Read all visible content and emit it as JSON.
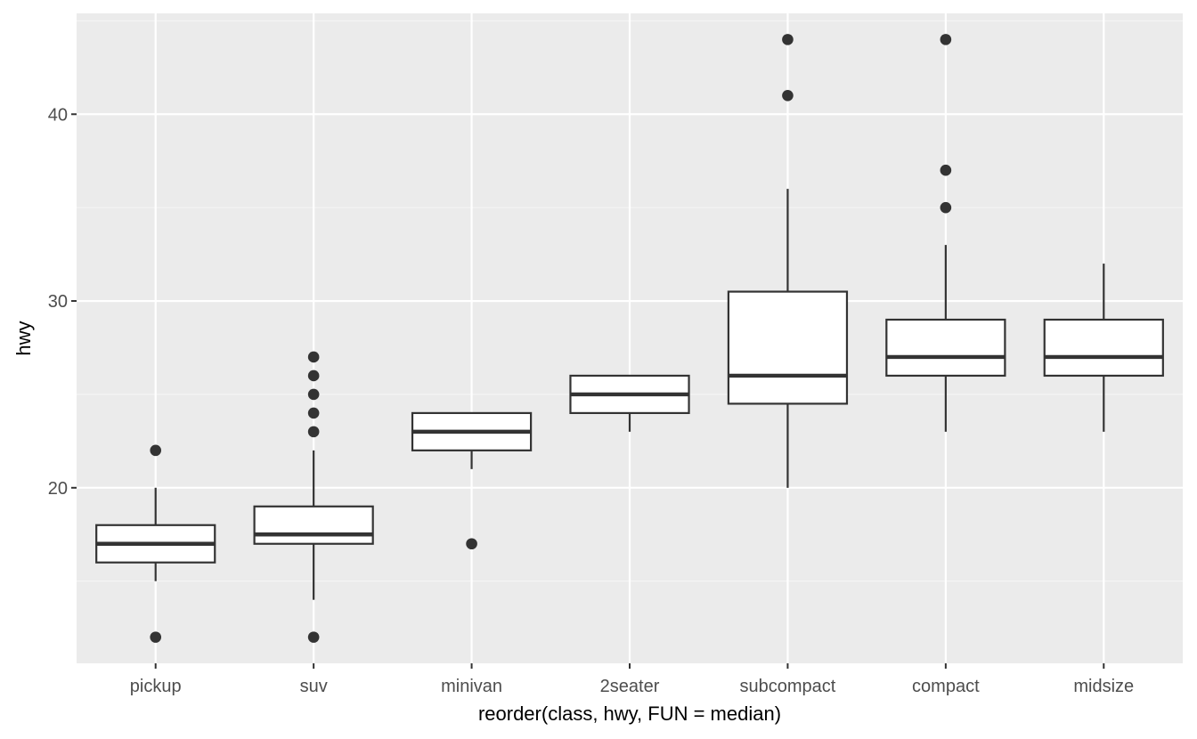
{
  "chart_data": {
    "type": "boxplot",
    "xlabel": "reorder(class, hwy, FUN = median)",
    "ylabel": "hwy",
    "ylim": [
      10.6,
      45.4
    ],
    "yticks": [
      20,
      30,
      40
    ],
    "ytick_labels": [
      "20",
      "30",
      "40"
    ],
    "grid": true,
    "categories": [
      "pickup",
      "suv",
      "minivan",
      "2seater",
      "subcompact",
      "compact",
      "midsize"
    ],
    "boxes": [
      {
        "category": "pickup",
        "whisker_low": 15,
        "q1": 16,
        "median": 17,
        "q3": 18,
        "whisker_high": 20,
        "outliers": [
          12,
          22
        ]
      },
      {
        "category": "suv",
        "whisker_low": 14,
        "q1": 17,
        "median": 17.5,
        "q3": 19,
        "whisker_high": 22,
        "outliers": [
          12,
          23,
          24,
          25,
          26,
          27
        ]
      },
      {
        "category": "minivan",
        "whisker_low": 21,
        "q1": 22,
        "median": 23,
        "q3": 24,
        "whisker_high": 24,
        "outliers": [
          17
        ]
      },
      {
        "category": "2seater",
        "whisker_low": 23,
        "q1": 24,
        "median": 25,
        "q3": 26,
        "whisker_high": 26,
        "outliers": []
      },
      {
        "category": "subcompact",
        "whisker_low": 20,
        "q1": 24.5,
        "median": 26,
        "q3": 30.5,
        "whisker_high": 36,
        "outliers": [
          41,
          44
        ]
      },
      {
        "category": "compact",
        "whisker_low": 23,
        "q1": 26,
        "median": 27,
        "q3": 29,
        "whisker_high": 33,
        "outliers": [
          35,
          37,
          44
        ]
      },
      {
        "category": "midsize",
        "whisker_low": 23,
        "q1": 26,
        "median": 27,
        "q3": 29,
        "whisker_high": 32,
        "outliers": []
      }
    ],
    "colors": {
      "panel_background": "#ebebeb",
      "grid_major": "#ffffff",
      "grid_minor": "#f5f5f5",
      "box_fill": "#ffffff",
      "box_stroke": "#333333",
      "text": "#4d4d4d"
    }
  }
}
